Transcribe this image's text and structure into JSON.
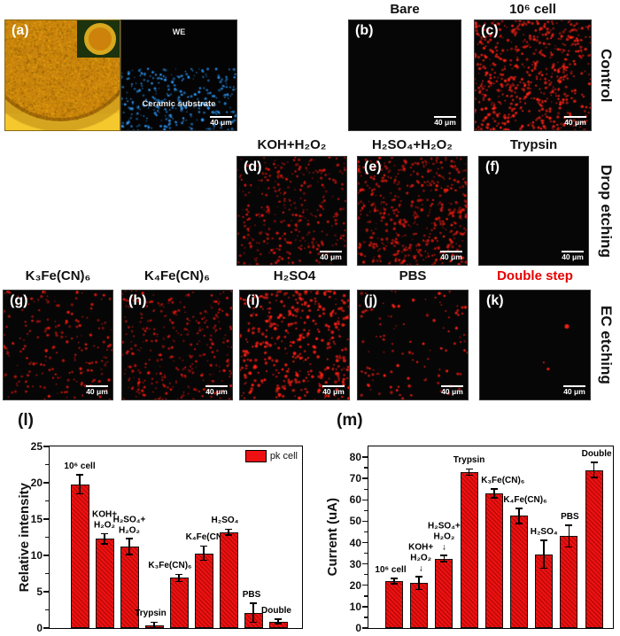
{
  "panel_a": {
    "letter": "(a)",
    "we_label": "WE",
    "substrate_label": "Ceramic substrate",
    "scalebar": "40 μm",
    "fluor_dots": {
      "count": 310,
      "color": "#2f9dff",
      "seed": 11,
      "band": [
        0.44,
        1.0
      ],
      "rmin": 0.7,
      "rmax": 1.7,
      "alpha": 0.4
    }
  },
  "rows": [
    {
      "side_label": "Control",
      "panels": [
        {
          "letter": "(b)",
          "title": "Bare",
          "scalebar": "40 μm",
          "dots": {
            "count": 0,
            "color": "#ff2316",
            "seed": 1
          }
        },
        {
          "letter": "(c)",
          "title": "10⁶ cell",
          "scalebar": "40 μm",
          "dots": {
            "count": 640,
            "color": "#ff2316",
            "seed": 7,
            "rmin": 0.7,
            "rmax": 1.8,
            "alpha": 0.5
          }
        }
      ]
    },
    {
      "side_label": "Drop etching",
      "panels": [
        {
          "letter": "(d)",
          "title": "KOH+H₂O₂",
          "scalebar": "40 μm",
          "dots": {
            "count": 340,
            "color": "#e81a10",
            "seed": 21,
            "rmin": 0.7,
            "rmax": 1.7,
            "alpha": 0.32
          }
        },
        {
          "letter": "(e)",
          "title": "H₂SO₄+H₂O₂",
          "scalebar": "40 μm",
          "dots": {
            "count": 520,
            "color": "#f01c10",
            "seed": 22,
            "rmin": 0.7,
            "rmax": 1.8,
            "alpha": 0.4
          }
        },
        {
          "letter": "(f)",
          "title": "Trypsin",
          "scalebar": "40 μm",
          "dots": {
            "count": 0,
            "color": "#f01c10",
            "seed": 23
          }
        }
      ]
    },
    {
      "side_label": "EC etching",
      "panels": [
        {
          "letter": "(g)",
          "title": "K₃Fe(CN)₆",
          "scalebar": "40 μm",
          "dots": {
            "count": 205,
            "color": "#f01c10",
            "seed": 31,
            "rmin": 0.7,
            "rmax": 1.8,
            "alpha": 0.45
          }
        },
        {
          "letter": "(h)",
          "title": "K₄Fe(CN)₆",
          "scalebar": "40 μm",
          "dots": {
            "count": 330,
            "color": "#ee1910",
            "seed": 32,
            "rmin": 0.7,
            "rmax": 1.7,
            "alpha": 0.4
          }
        },
        {
          "letter": "(i)",
          "title": "H₂SO4",
          "scalebar": "40 μm",
          "dots": {
            "count": 390,
            "color": "#ff2015",
            "seed": 33,
            "rmin": 0.8,
            "rmax": 2.0,
            "alpha": 0.55
          }
        },
        {
          "letter": "(j)",
          "title": "PBS",
          "scalebar": "40 μm",
          "dots": {
            "count": 115,
            "color": "#ff2015",
            "seed": 34,
            "rmin": 0.7,
            "rmax": 1.8,
            "alpha": 0.5
          }
        },
        {
          "letter": "(k)",
          "title": "Double step",
          "title_color": "#e60000",
          "scalebar": "40 μm",
          "dots": {
            "count": 0,
            "color": "#ff2316",
            "seed": 35,
            "spots": [
              {
                "x": 0.79,
                "y": 0.33,
                "r": 2.5
              },
              {
                "x": 0.62,
                "y": 0.72,
                "r": 1.6
              },
              {
                "x": 0.58,
                "y": 0.66,
                "r": 1.0
              }
            ]
          }
        }
      ]
    }
  ],
  "chart_data": [
    {
      "id": "l",
      "panel_letter": "(l)",
      "type": "bar",
      "legend": "pk cell",
      "ylabel": "Relative intensity",
      "ylim": [
        0,
        25
      ],
      "ytick_step": 5,
      "ytick_minor": 2.5,
      "yticks": [
        0,
        5,
        10,
        15,
        20,
        25
      ],
      "bar_color": "#ed1111",
      "grid": false,
      "legend_position": "top-right",
      "categories": [
        "10⁶ cell",
        "KOH+H₂O₂",
        "H₂SO₄+H₂O₂",
        "Trypsin",
        "K₃Fe(CN)₆",
        "K₄Fe(CN)",
        "H₂SO₄",
        "PBS",
        "Double"
      ],
      "values": [
        19.8,
        12.3,
        11.2,
        0.4,
        6.9,
        10.3,
        13.2,
        2.1,
        0.9
      ],
      "errors": [
        1.3,
        0.7,
        1.1,
        0.4,
        0.5,
        1.0,
        0.4,
        1.3,
        0.3
      ],
      "annotations": [
        [
          "10⁶ cell"
        ],
        [
          "KOH+",
          "H₂O₂"
        ],
        [
          "H₂SO₄+",
          "H₂O₂"
        ],
        [
          "Trypsin"
        ],
        [
          "K₃Fe(CN)₆"
        ],
        [
          "K₄Fe(CN)"
        ],
        [
          "H₂SO₄"
        ],
        [
          "PBS"
        ],
        [
          "Double"
        ]
      ],
      "label_dx": [
        0,
        0,
        0,
        -4,
        -10,
        2,
        -4,
        -2,
        -2
      ]
    },
    {
      "id": "m",
      "panel_letter": "(m)",
      "type": "bar",
      "legend": null,
      "ylabel": "Current (uA)",
      "ylim": [
        0,
        85
      ],
      "ytick_step": 10,
      "ytick_minor": 5,
      "yticks": [
        0,
        10,
        20,
        30,
        40,
        50,
        60,
        70,
        80
      ],
      "bar_color": "#ed1111",
      "grid": false,
      "categories": [
        "10⁶ cell",
        "KOH+H₂O₂",
        "H₂SO₄+H₂O₂",
        "Trypsin",
        "K₃Fe(CN)₆",
        "K₄Fe(CN)₆",
        "H₂SO₄",
        "PBS",
        "Double"
      ],
      "values": [
        22,
        21,
        32.5,
        73,
        63,
        52.5,
        34.5,
        43,
        74
      ],
      "errors": [
        1.2,
        3,
        1.5,
        1.5,
        2,
        3.5,
        6.5,
        5,
        3.5
      ],
      "annotations": [
        [
          "10⁶ cell"
        ],
        [
          "KOH+",
          "H₂O₂",
          "↓"
        ],
        [
          "H₂SO₄+",
          "H₂O₂",
          "↓"
        ],
        [
          "Trypsin"
        ],
        [
          "K₃Fe(CN)₆"
        ],
        [
          "K₄Fe(CN)₆"
        ],
        [
          "H₂SO₄"
        ],
        [
          "PBS"
        ],
        [
          "Double"
        ]
      ],
      "label_dx": [
        -4,
        2,
        0,
        0,
        10,
        7,
        0,
        1,
        3
      ]
    }
  ]
}
